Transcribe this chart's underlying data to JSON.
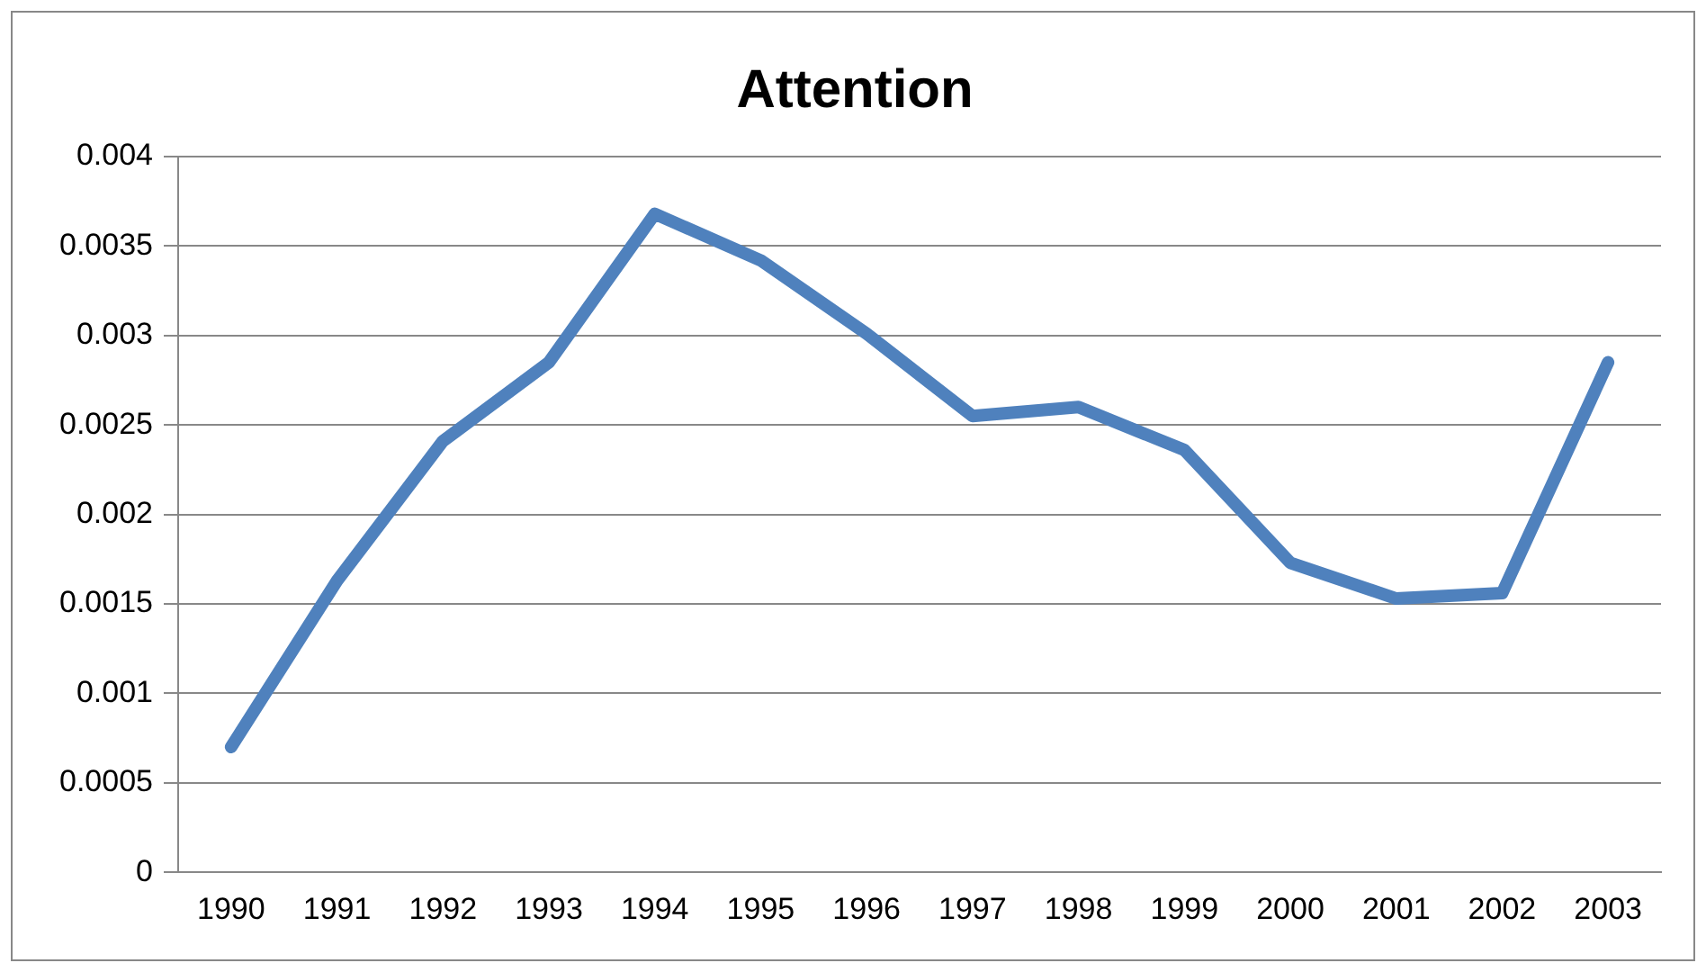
{
  "chart_data": {
    "type": "line",
    "title": "Attention",
    "categories": [
      "1990",
      "1991",
      "1992",
      "1993",
      "1994",
      "1995",
      "1996",
      "1997",
      "1998",
      "1999",
      "2000",
      "2001",
      "2002",
      "2003"
    ],
    "values": [
      0.0007,
      0.00163,
      0.00241,
      0.00285,
      0.00368,
      0.00342,
      0.00301,
      0.00255,
      0.0026,
      0.00236,
      0.00173,
      0.00153,
      0.00156,
      0.00285
    ],
    "color": "#4f81bd",
    "ylim": [
      0,
      0.004
    ],
    "yticks": [
      0,
      0.0005,
      0.001,
      0.0015,
      0.002,
      0.0025,
      0.003,
      0.0035,
      0.004
    ],
    "grid": "y",
    "legend": false,
    "marker": "none",
    "line_style": "solid"
  }
}
